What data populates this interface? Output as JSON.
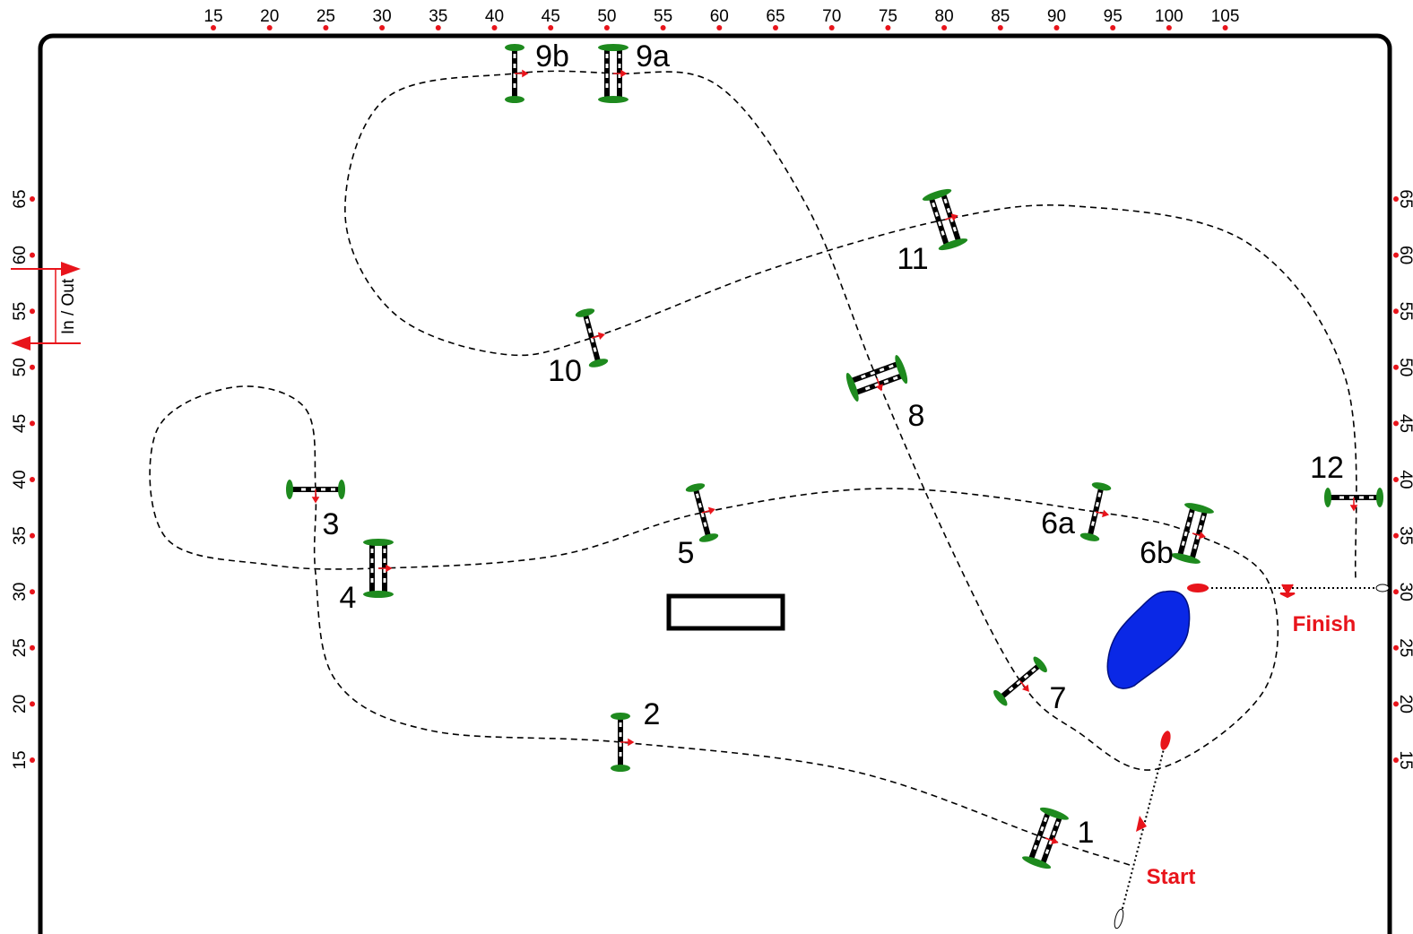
{
  "ruler": {
    "top": [
      "15",
      "20",
      "25",
      "30",
      "35",
      "40",
      "45",
      "50",
      "55",
      "60",
      "65",
      "70",
      "75",
      "80",
      "85",
      "90",
      "95",
      "100",
      "105"
    ],
    "left": [
      "65",
      "60",
      "55",
      "50",
      "45",
      "40",
      "35",
      "30",
      "25",
      "20",
      "15"
    ],
    "right": [
      "65",
      "60",
      "55",
      "50",
      "45",
      "40",
      "35",
      "30",
      "25",
      "20",
      "15"
    ]
  },
  "entrance": "In / Out",
  "jumps": [
    "1",
    "2",
    "3",
    "4",
    "5",
    "6a",
    "6b",
    "7",
    "8",
    "9a",
    "9b",
    "10",
    "11",
    "12"
  ],
  "start": "Start",
  "finish": "Finish"
}
